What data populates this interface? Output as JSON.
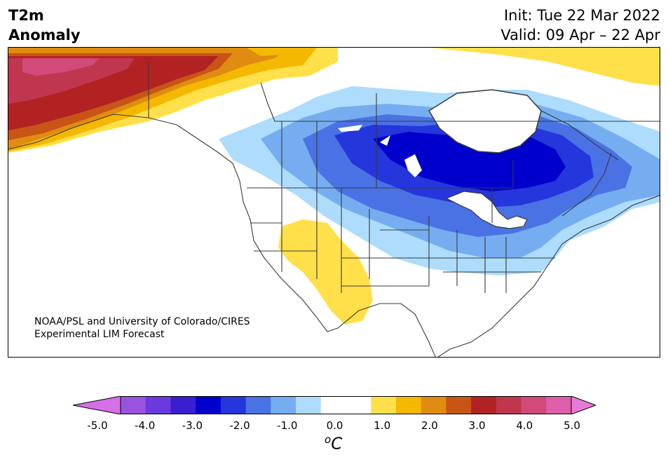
{
  "header": {
    "title_line1": "T2m",
    "title_line2": "Anomaly",
    "init": "Init: Tue 22 Mar 2022",
    "valid": "Valid: 09 Apr – 22 Apr"
  },
  "credit": {
    "line1": "NOAA/PSL and University of Colorado/CIRES",
    "line2": "Experimental LIM Forecast"
  },
  "colorbar": {
    "ticks": [
      "-5.0",
      "-4.0",
      "-3.0",
      "-2.0",
      "-1.0",
      "0.0",
      "1.0",
      "2.0",
      "3.0",
      "4.0",
      "5.0"
    ],
    "unit_base": "C",
    "unit_sup": "o",
    "colors": [
      "#d670e8",
      "#9b52df",
      "#6a3adf",
      "#3a1fd1",
      "#0000cd",
      "#2436dc",
      "#4a72e4",
      "#75adf0",
      "#addcfc",
      "#ffffff",
      "#ffffff",
      "#ffe04a",
      "#f4b800",
      "#e08c10",
      "#c85416",
      "#b22222",
      "#c0364e",
      "#d24a79",
      "#de5ea9",
      "#e67ad8"
    ]
  },
  "map": {
    "region": "North America",
    "legend_colors": {
      "cold_core": "#0000cd",
      "cold_strong": "#2436dc",
      "cold_mod": "#4a72e4",
      "cold_light": "#75adf0",
      "cold_faint": "#addcfc",
      "warm_faint": "#ffe04a",
      "warm_light": "#f4b800",
      "warm_mod": "#e08c10",
      "warm_strong": "#c85416",
      "warm_hot": "#b22222",
      "warm_extreme": "#c0364e",
      "warm_max": "#d24a79"
    }
  }
}
